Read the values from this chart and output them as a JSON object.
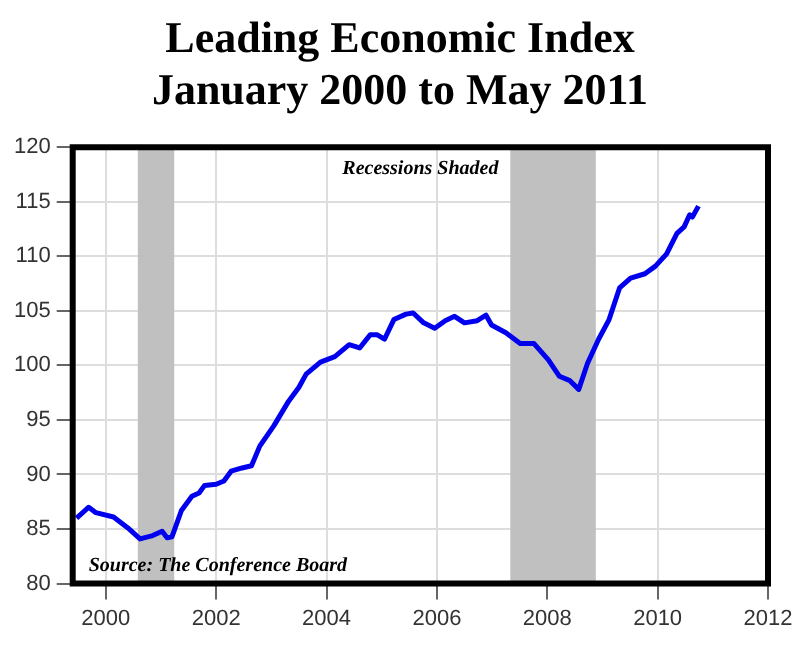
{
  "chart_data": {
    "type": "line",
    "title": "Leading Economic Index January 2000 to May 2011",
    "annotations": [
      "Recessions Shaded",
      "Source: The Conference Board"
    ],
    "series": [
      {
        "color": "#0000ee",
        "x": [
          1999.47,
          1999.69,
          1999.82,
          2000.14,
          2000.4,
          2000.62,
          2000.85,
          2001.02,
          2001.11,
          2001.2,
          2001.37,
          2001.56,
          2001.69,
          2001.79,
          2002.0,
          2002.14,
          2002.27,
          2002.47,
          2002.64,
          2002.79,
          2003.05,
          2003.31,
          2003.5,
          2003.63,
          2003.89,
          2004.15,
          2004.41,
          2004.6,
          2004.79,
          2004.92,
          2005.05,
          2005.22,
          2005.44,
          2005.57,
          2005.76,
          2005.96,
          2006.15,
          2006.32,
          2006.5,
          2006.73,
          2006.89,
          2006.99,
          2007.25,
          2007.51,
          2007.76,
          2008.02,
          2008.22,
          2008.41,
          2008.57,
          2008.73,
          2008.93,
          2009.12,
          2009.31,
          2009.51,
          2009.77,
          2009.96,
          2010.16,
          2010.35,
          2010.48,
          2010.58,
          2010.63,
          2010.74
        ],
        "values": [
          86.0,
          87.0,
          86.5,
          86.1,
          85.1,
          84.1,
          84.4,
          84.8,
          84.2,
          84.3,
          86.7,
          88.0,
          88.3,
          89.0,
          89.1,
          89.4,
          90.3,
          90.6,
          90.8,
          92.6,
          94.5,
          96.7,
          98.0,
          99.2,
          100.3,
          100.8,
          101.9,
          101.6,
          102.8,
          102.8,
          102.4,
          104.2,
          104.7,
          104.8,
          103.9,
          103.4,
          104.1,
          104.5,
          103.9,
          104.1,
          104.6,
          103.7,
          103.0,
          102.0,
          102.0,
          100.5,
          99.0,
          98.6,
          97.8,
          100.2,
          102.4,
          104.2,
          107.1,
          108.0,
          108.4,
          109.1,
          110.2,
          112.1,
          112.7,
          113.8,
          113.6,
          114.6
        ]
      }
    ],
    "xlim": [
      1999.4,
      2012
    ],
    "xticks": [
      2000,
      2002,
      2004,
      2006,
      2008,
      2010,
      2012
    ],
    "ylim": [
      80,
      120
    ],
    "yticks": [
      80,
      85,
      90,
      95,
      100,
      105,
      110,
      115,
      120
    ],
    "bands": [
      {
        "axis": "x",
        "from": 2000.58,
        "to": 2001.24,
        "color": "#c0c0c0"
      },
      {
        "axis": "x",
        "from": 2007.33,
        "to": 2008.88,
        "color": "#c0c0c0"
      }
    ],
    "grid": true,
    "legend": false,
    "marker": "none",
    "line_style": "solid"
  }
}
